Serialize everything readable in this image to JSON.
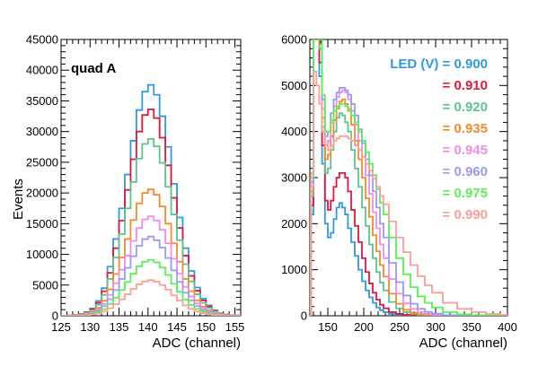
{
  "chart_data": [
    {
      "type": "line",
      "panel": "left",
      "annotation": "quad A",
      "xlabel": "ADC (channel)",
      "ylabel": "Events",
      "xlim": [
        125,
        156
      ],
      "ylim": [
        0,
        45000
      ],
      "xticks": [
        125,
        130,
        135,
        140,
        145,
        150,
        155
      ],
      "yticks": [
        0,
        5000,
        10000,
        15000,
        20000,
        25000,
        30000,
        35000,
        40000,
        45000
      ],
      "grid": false,
      "bin_edges": [
        125,
        126,
        127,
        128,
        129,
        130,
        131,
        132,
        133,
        134,
        135,
        136,
        137,
        138,
        139,
        140,
        141,
        142,
        143,
        144,
        145,
        146,
        147,
        148,
        149,
        150,
        151,
        152,
        153,
        154,
        155,
        156
      ],
      "series": [
        {
          "color": "#2f9ae0",
          "values": [
            0,
            50,
            120,
            300,
            600,
            1200,
            2400,
            4500,
            8000,
            12500,
            17500,
            23000,
            28500,
            33500,
            36500,
            37600,
            36000,
            32500,
            27500,
            21500,
            16000,
            11000,
            7300,
            4600,
            2800,
            1700,
            900,
            400,
            200,
            100,
            50
          ]
        },
        {
          "color": "#e0183c",
          "values": [
            0,
            40,
            110,
            260,
            530,
            1050,
            2100,
            4000,
            7000,
            11000,
            15500,
            20500,
            25500,
            30000,
            32700,
            33600,
            32200,
            29000,
            24500,
            19200,
            14300,
            9800,
            6500,
            4100,
            2500,
            1500,
            800,
            360,
            180,
            90,
            45
          ]
        },
        {
          "color": "#5ec48e",
          "values": [
            0,
            35,
            95,
            220,
            450,
            900,
            1800,
            3400,
            6000,
            9500,
            13300,
            17500,
            21800,
            25600,
            28000,
            28800,
            27600,
            24900,
            21000,
            16500,
            12300,
            8400,
            5600,
            3500,
            2100,
            1300,
            700,
            310,
            150,
            80,
            40
          ]
        },
        {
          "color": "#f28b28",
          "values": [
            0,
            25,
            70,
            160,
            320,
            640,
            1300,
            2450,
            4300,
            6800,
            9500,
            12500,
            15600,
            18300,
            20000,
            20600,
            19700,
            17800,
            15000,
            11800,
            8800,
            6000,
            4000,
            2500,
            1500,
            900,
            500,
            220,
            110,
            55,
            30
          ]
        },
        {
          "color": "#f08ce8",
          "values": [
            0,
            20,
            55,
            125,
            250,
            500,
            1000,
            1900,
            3400,
            5300,
            7500,
            9800,
            12200,
            14300,
            15700,
            16200,
            15500,
            14000,
            11800,
            9300,
            6900,
            4700,
            3150,
            2000,
            1200,
            720,
            400,
            180,
            90,
            45,
            25
          ]
        },
        {
          "color": "#9a9af0",
          "values": [
            0,
            15,
            45,
            100,
            200,
            400,
            800,
            1550,
            2700,
            4200,
            6000,
            7800,
            9700,
            11400,
            12500,
            12900,
            12300,
            11100,
            9400,
            7400,
            5500,
            3750,
            2500,
            1550,
            950,
            570,
            310,
            140,
            70,
            35,
            20
          ]
        },
        {
          "color": "#58f058",
          "values": [
            0,
            10,
            30,
            70,
            140,
            280,
            560,
            1080,
            1900,
            2950,
            4200,
            5500,
            6850,
            8050,
            8800,
            9100,
            8700,
            7850,
            6650,
            5200,
            3900,
            2650,
            1770,
            1100,
            670,
            400,
            220,
            100,
            50,
            25,
            15
          ]
        },
        {
          "color": "#f8a098",
          "values": [
            0,
            8,
            20,
            45,
            90,
            180,
            360,
            690,
            1210,
            1880,
            2680,
            3500,
            4360,
            5120,
            5600,
            5800,
            5550,
            5000,
            4250,
            3320,
            2480,
            1690,
            1130,
            700,
            430,
            260,
            140,
            65,
            32,
            16,
            10
          ]
        }
      ]
    },
    {
      "type": "line",
      "panel": "right",
      "xlabel": "ADC (channel)",
      "ylabel": "",
      "xlim": [
        125,
        400
      ],
      "ylim": [
        0,
        6000
      ],
      "xticks": [
        150,
        200,
        250,
        300,
        350,
        400
      ],
      "yticks": [
        0,
        1000,
        2000,
        3000,
        4000,
        5000,
        6000
      ],
      "grid": false,
      "legend_title": "LED (V) =",
      "legend_placement": "top-right",
      "series": [
        {
          "name": "0.900",
          "color": "#2f9ae0",
          "x": [
            125,
            128,
            132,
            136,
            140,
            144,
            148,
            152,
            156,
            160,
            164,
            168,
            172,
            176,
            180,
            185,
            190,
            195,
            200,
            205,
            210,
            215,
            220,
            225,
            230,
            240,
            250,
            260,
            270,
            280,
            290,
            300
          ],
          "y": [
            0,
            2200,
            6000,
            6000,
            5200,
            3300,
            2000,
            1700,
            1800,
            2100,
            2350,
            2450,
            2350,
            2200,
            1900,
            1600,
            1300,
            1000,
            750,
            550,
            400,
            280,
            180,
            120,
            80,
            40,
            20,
            10,
            5,
            3,
            1,
            0
          ]
        },
        {
          "name": "0.910",
          "color": "#e0183c",
          "x": [
            125,
            128,
            132,
            136,
            140,
            144,
            148,
            152,
            156,
            160,
            164,
            168,
            172,
            176,
            180,
            185,
            190,
            195,
            200,
            205,
            210,
            215,
            220,
            225,
            230,
            240,
            250,
            260,
            270,
            280,
            290,
            300,
            320
          ],
          "y": [
            0,
            2400,
            6000,
            6000,
            5500,
            3700,
            2500,
            2300,
            2500,
            2800,
            3000,
            3100,
            3100,
            3000,
            2700,
            2300,
            1950,
            1600,
            1250,
            950,
            700,
            500,
            350,
            240,
            160,
            80,
            40,
            20,
            10,
            5,
            3,
            1,
            0
          ]
        },
        {
          "name": "0.920",
          "color": "#5ec48e",
          "x": [
            125,
            128,
            132,
            136,
            140,
            144,
            148,
            152,
            156,
            160,
            164,
            168,
            172,
            176,
            180,
            185,
            190,
            195,
            200,
            205,
            210,
            215,
            220,
            225,
            230,
            240,
            250,
            260,
            270,
            280,
            290,
            300,
            320,
            340
          ],
          "y": [
            0,
            2600,
            6000,
            6000,
            5800,
            4100,
            3100,
            3200,
            3600,
            4000,
            4300,
            4400,
            4350,
            4200,
            4000,
            3600,
            3200,
            2800,
            2350,
            1950,
            1550,
            1250,
            950,
            720,
            550,
            300,
            160,
            80,
            40,
            20,
            10,
            5,
            2,
            0
          ]
        },
        {
          "name": "0.935",
          "color": "#f28b28",
          "x": [
            125,
            128,
            132,
            136,
            140,
            144,
            148,
            152,
            156,
            160,
            164,
            168,
            172,
            176,
            180,
            185,
            190,
            195,
            200,
            205,
            210,
            215,
            220,
            225,
            230,
            240,
            250,
            260,
            270,
            280,
            290,
            300,
            320,
            340
          ],
          "y": [
            0,
            2700,
            6000,
            6000,
            5900,
            4300,
            3400,
            3500,
            3900,
            4250,
            4500,
            4650,
            4700,
            4600,
            4450,
            4150,
            3800,
            3400,
            3000,
            2550,
            2150,
            1750,
            1400,
            1100,
            850,
            480,
            260,
            130,
            65,
            32,
            16,
            8,
            3,
            0
          ]
        },
        {
          "name": "0.945",
          "color": "#f08ce8",
          "x": [
            125,
            128,
            132,
            136,
            140,
            144,
            148,
            152,
            156,
            160,
            164,
            168,
            172,
            176,
            180,
            185,
            190,
            195,
            200,
            205,
            210,
            215,
            220,
            225,
            230,
            240,
            250,
            260,
            270,
            280,
            290,
            300,
            320,
            340,
            360
          ],
          "y": [
            0,
            2800,
            6000,
            6000,
            6000,
            4500,
            3700,
            3800,
            4200,
            4550,
            4750,
            4850,
            4900,
            4850,
            4700,
            4450,
            4150,
            3800,
            3450,
            3050,
            2650,
            2250,
            1900,
            1550,
            1250,
            800,
            480,
            270,
            150,
            80,
            40,
            20,
            6,
            2,
            0
          ]
        },
        {
          "name": "0.960",
          "color": "#9a9af0",
          "x": [
            125,
            128,
            132,
            136,
            140,
            144,
            148,
            152,
            156,
            160,
            164,
            168,
            172,
            176,
            180,
            185,
            190,
            195,
            200,
            205,
            210,
            215,
            220,
            225,
            230,
            240,
            250,
            260,
            270,
            280,
            290,
            300,
            320,
            340,
            360,
            380
          ],
          "y": [
            0,
            2900,
            6000,
            6000,
            6000,
            4700,
            3900,
            4000,
            4400,
            4700,
            4850,
            4950,
            4950,
            4900,
            4800,
            4600,
            4350,
            4050,
            3750,
            3400,
            3050,
            2700,
            2350,
            2000,
            1700,
            1150,
            730,
            440,
            260,
            150,
            85,
            45,
            14,
            4,
            1,
            0
          ]
        },
        {
          "name": "0.975",
          "color": "#58f058",
          "x": [
            125,
            128,
            132,
            136,
            140,
            144,
            148,
            152,
            156,
            160,
            164,
            168,
            172,
            176,
            180,
            185,
            190,
            195,
            200,
            205,
            210,
            215,
            220,
            225,
            230,
            240,
            250,
            260,
            270,
            280,
            290,
            300,
            320,
            340,
            360,
            380,
            400
          ],
          "y": [
            0,
            3000,
            6000,
            6000,
            6000,
            4800,
            4000,
            4000,
            4250,
            4450,
            4550,
            4600,
            4600,
            4550,
            4500,
            4350,
            4200,
            4000,
            3800,
            3550,
            3300,
            3050,
            2750,
            2450,
            2200,
            1700,
            1250,
            900,
            620,
            420,
            280,
            180,
            75,
            30,
            12,
            4,
            0
          ]
        },
        {
          "name": "0.990",
          "color": "#f8a098",
          "x": [
            125,
            128,
            132,
            136,
            140,
            144,
            148,
            152,
            156,
            160,
            164,
            168,
            172,
            176,
            180,
            185,
            190,
            195,
            200,
            205,
            210,
            215,
            220,
            225,
            230,
            240,
            250,
            260,
            270,
            280,
            290,
            300,
            320,
            340,
            360,
            380,
            400
          ],
          "y": [
            0,
            3100,
            5300,
            5000,
            4600,
            4000,
            3700,
            3600,
            3700,
            3800,
            3850,
            3900,
            3900,
            3900,
            3850,
            3800,
            3700,
            3600,
            3450,
            3300,
            3150,
            2980,
            2800,
            2600,
            2420,
            2050,
            1700,
            1380,
            1100,
            860,
            660,
            500,
            280,
            150,
            80,
            40,
            20
          ]
        }
      ]
    }
  ]
}
